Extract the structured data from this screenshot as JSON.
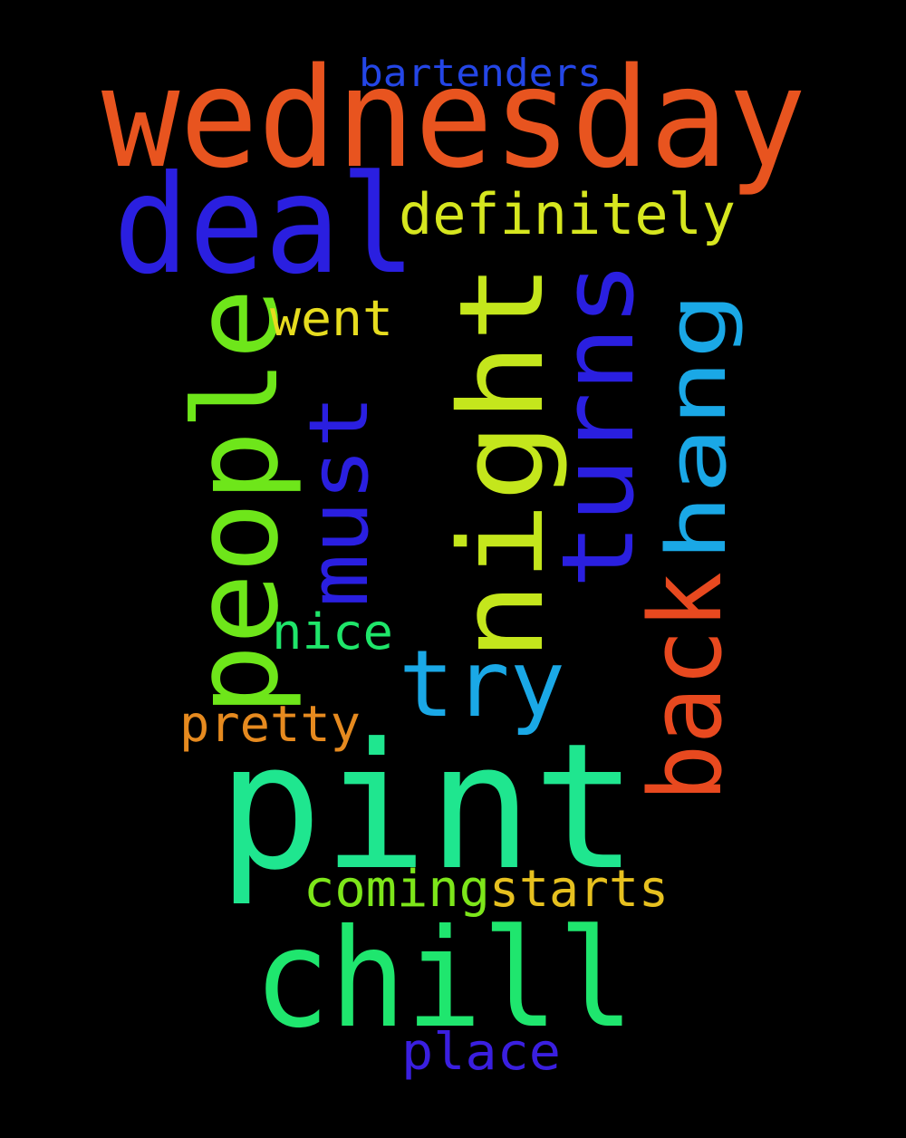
{
  "words": [
    {
      "text": "wednesday",
      "color": "#e8541f"
    },
    {
      "text": "deal",
      "color": "#2a1fe0"
    },
    {
      "text": "bartenders",
      "color": "#2446e6"
    },
    {
      "text": "definitely",
      "color": "#d6e61f"
    },
    {
      "text": "people",
      "color": "#6ee61a"
    },
    {
      "text": "went",
      "color": "#e6dc1f"
    },
    {
      "text": "must",
      "color": "#2a1fe0"
    },
    {
      "text": "night",
      "color": "#c4e61c"
    },
    {
      "text": "turns",
      "color": "#2a1fe0"
    },
    {
      "text": "hang",
      "color": "#1aa8e6"
    },
    {
      "text": "back",
      "color": "#e8491f"
    },
    {
      "text": "nice",
      "color": "#1fe66a"
    },
    {
      "text": "try",
      "color": "#1aa8e6"
    },
    {
      "text": "pretty",
      "color": "#e68a1f"
    },
    {
      "text": "pint",
      "color": "#1fe68f"
    },
    {
      "text": "coming",
      "color": "#7de61a"
    },
    {
      "text": "starts",
      "color": "#e6c01f"
    },
    {
      "text": "chill",
      "color": "#1fe66e"
    },
    {
      "text": "place",
      "color": "#3a1fe0"
    }
  ]
}
